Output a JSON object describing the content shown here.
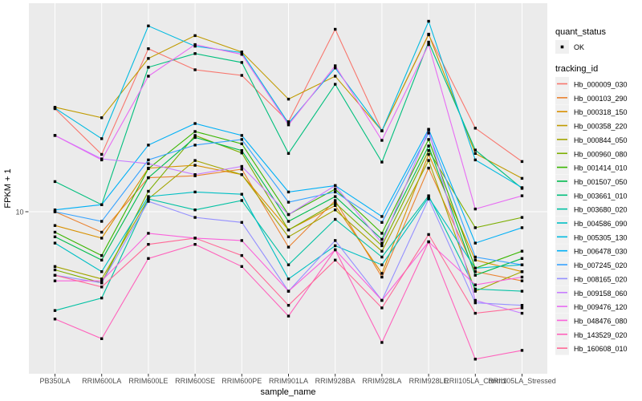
{
  "chart_data": {
    "type": "line",
    "title": "",
    "xlabel": "sample_name",
    "ylabel": "FPKM + 1",
    "y_scale": "log10",
    "y_ticks": [
      10
    ],
    "y_tick_labels": [
      "10"
    ],
    "ylim": [
      1.9,
      95
    ],
    "grid": "major",
    "panel_bg": "#EBEBEB",
    "grid_color": "#FFFFFF",
    "point_shape": "filled-square",
    "point_color": "#000000",
    "legend_position": "right",
    "quant_legend": {
      "title": "quant_status",
      "items": [
        {
          "label": "OK",
          "marker": "black-point"
        }
      ]
    },
    "tracking_legend": {
      "title": "tracking_id"
    },
    "categories": [
      "PB350LA",
      "RRIM600LA",
      "RRIM600LE",
      "RRIM600SE",
      "RRIM600PE",
      "RRIM901LA",
      "RRIM928BA",
      "RRIM928LA",
      "RRIM928LE",
      "RRII105LA_Control",
      "RRII105LA_Stressed"
    ],
    "series": [
      {
        "name": "Hb_000009_030",
        "color": "#F8766D",
        "values": [
          30.8,
          18.7,
          59.3,
          47.1,
          44.3,
          26.7,
          73.3,
          24.2,
          69.0,
          24.9,
          17.3
        ]
      },
      {
        "name": "Hb_000103_290",
        "color": "#EA8331",
        "values": [
          10.0,
          8.0,
          14.5,
          14.8,
          15.9,
          6.8,
          11.3,
          4.9,
          16.1,
          5.2,
          4.7
        ]
      },
      {
        "name": "Hb_000318_150",
        "color": "#D89000",
        "values": [
          8.6,
          7.5,
          16.1,
          16.6,
          15.0,
          8.2,
          10.7,
          5.1,
          18.7,
          5.9,
          5.2
        ]
      },
      {
        "name": "Hb_000358_220",
        "color": "#C09B00",
        "values": [
          31.3,
          27.9,
          53.3,
          68.4,
          57.2,
          34.2,
          43.9,
          24.2,
          69.5,
          18.9,
          14.4
        ]
      },
      {
        "name": "Hb_000844_050",
        "color": "#A3A500",
        "values": [
          5.5,
          4.8,
          11.5,
          17.5,
          15.0,
          7.6,
          10.2,
          6.5,
          17.5,
          4.2,
          5.2
        ]
      },
      {
        "name": "Hb_000960_080",
        "color": "#7CAE00",
        "values": [
          5.3,
          4.6,
          12.5,
          23.0,
          19.0,
          8.2,
          11.0,
          6.9,
          19.5,
          8.4,
          9.4
        ]
      },
      {
        "name": "Hb_001414_010",
        "color": "#39B600",
        "values": [
          8.0,
          6.2,
          16.0,
          24.0,
          21.0,
          9.7,
          12.8,
          7.9,
          22.0,
          5.4,
          6.5
        ]
      },
      {
        "name": "Hb_001507_050",
        "color": "#00BB4E",
        "values": [
          7.6,
          5.9,
          14.5,
          22.5,
          19.5,
          9.0,
          11.8,
          7.4,
          20.5,
          5.0,
          6.0
        ]
      },
      {
        "name": "Hb_003661_010",
        "color": "#00BF7D",
        "values": [
          13.9,
          10.8,
          48.4,
          56.2,
          51.0,
          18.9,
          40.2,
          17.2,
          63.7,
          19.6,
          12.9
        ]
      },
      {
        "name": "Hb_003680_020",
        "color": "#00C1A3",
        "values": [
          3.4,
          3.9,
          11.5,
          10.2,
          11.3,
          5.6,
          9.2,
          6.1,
          11.9,
          4.3,
          4.2
        ]
      },
      {
        "name": "Hb_004586_090",
        "color": "#00BFC4",
        "values": [
          7.1,
          5.2,
          11.8,
          12.4,
          12.1,
          4.8,
          6.9,
          5.6,
          11.7,
          5.4,
          5.6
        ]
      },
      {
        "name": "Hb_005305_130",
        "color": "#00BAE0",
        "values": [
          31.0,
          22.2,
          76.0,
          60.9,
          56.8,
          26.3,
          48.0,
          24.2,
          80.0,
          17.6,
          13.0
        ]
      },
      {
        "name": "Hb_006478_030",
        "color": "#00B0F6",
        "values": [
          10.2,
          10.8,
          20.7,
          26.2,
          23.0,
          12.4,
          13.3,
          9.5,
          24.6,
          7.1,
          8.4
        ]
      },
      {
        "name": "Hb_007245_020",
        "color": "#35A2FF",
        "values": [
          10.0,
          9.0,
          17.6,
          20.7,
          22.0,
          11.1,
          12.4,
          8.9,
          23.6,
          6.1,
          5.6
        ]
      },
      {
        "name": "Hb_008165_020",
        "color": "#9590FF",
        "values": [
          5.0,
          4.6,
          11.2,
          9.4,
          8.9,
          4.2,
          7.3,
          3.8,
          11.5,
          3.7,
          3.6
        ]
      },
      {
        "name": "Hb_009158_060",
        "color": "#C77CFF",
        "values": [
          23.0,
          17.8,
          16.9,
          15.0,
          16.4,
          9.7,
          13.3,
          7.1,
          24.4,
          3.8,
          3.3
        ]
      },
      {
        "name": "Hb_009476_120",
        "color": "#E76BF3",
        "values": [
          23.0,
          17.6,
          43.9,
          62.0,
          55.7,
          25.8,
          49.2,
          21.8,
          62.0,
          10.3,
          11.9
        ]
      },
      {
        "name": "Hb_048476_080",
        "color": "#FA62DB",
        "values": [
          4.7,
          4.7,
          7.9,
          7.5,
          7.3,
          4.2,
          6.6,
          3.8,
          7.2,
          4.5,
          4.9
        ]
      },
      {
        "name": "Hb_143529_020",
        "color": "#FF62BC",
        "values": [
          3.1,
          2.5,
          6.0,
          7.0,
          5.5,
          3.2,
          6.6,
          2.4,
          7.2,
          2.0,
          2.2
        ]
      },
      {
        "name": "Hb_160608_010",
        "color": "#FF6A98",
        "values": [
          5.0,
          4.4,
          7.0,
          7.5,
          6.2,
          3.6,
          5.9,
          3.5,
          7.8,
          3.3,
          3.5
        ]
      }
    ]
  }
}
